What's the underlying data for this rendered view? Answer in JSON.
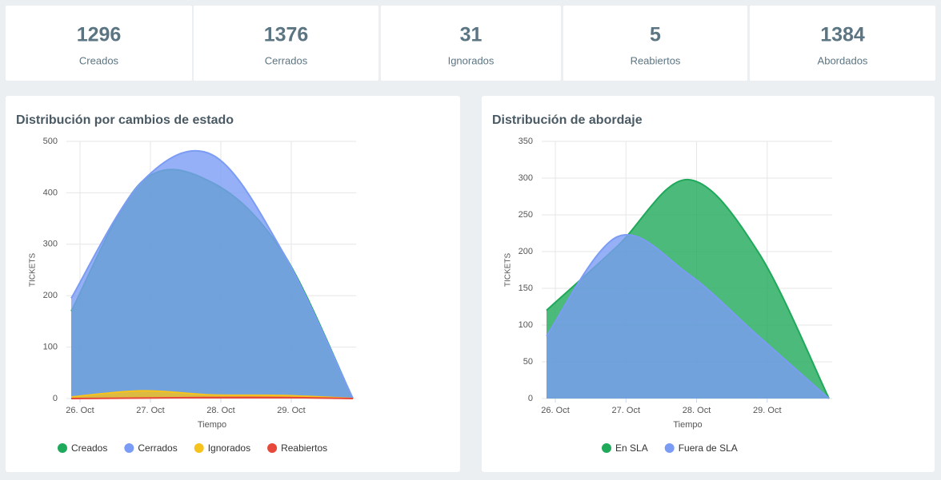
{
  "stats": [
    {
      "value": 1296,
      "label": "Creados"
    },
    {
      "value": 1376,
      "label": "Cerrados"
    },
    {
      "value": 31,
      "label": "Ignorados"
    },
    {
      "value": 5,
      "label": "Reabiertos"
    },
    {
      "value": 1384,
      "label": "Abordados"
    }
  ],
  "chart_data": [
    {
      "type": "area",
      "title": "Distribución por cambios de estado",
      "y_label": "TICKETS",
      "x_label": "Tiempo",
      "x": [
        25.875,
        26.875,
        27.875,
        28.875,
        29.875
      ],
      "xlim": [
        25.875,
        29.875
      ],
      "xticks": [
        {
          "value": 26,
          "label": "26. Oct"
        },
        {
          "value": 27,
          "label": "27. Oct"
        },
        {
          "value": 28,
          "label": "28. Oct"
        },
        {
          "value": 29,
          "label": "29. Oct"
        }
      ],
      "ylim": [
        0,
        500
      ],
      "yticks": [
        0,
        100,
        200,
        300,
        400,
        500
      ],
      "grid": true,
      "series": [
        {
          "name": "Creados",
          "color": "#1fa95a",
          "values": [
            170,
            421,
            420,
            285,
            0
          ]
        },
        {
          "name": "Cerrados",
          "color": "#7b9cf4",
          "values": [
            195,
            421,
            474,
            286,
            0
          ]
        },
        {
          "name": "Ignorados",
          "color": "#f6c21c",
          "values": [
            3,
            15,
            7,
            6,
            0
          ]
        },
        {
          "name": "Reabiertos",
          "color": "#e8483a",
          "values": [
            0,
            1,
            2,
            2,
            0
          ]
        }
      ]
    },
    {
      "type": "area",
      "title": "Distribución de abordaje",
      "y_label": "TICKETS",
      "x_label": "Tiempo",
      "x": [
        25.875,
        26.875,
        27.875,
        28.875,
        29.875
      ],
      "xlim": [
        25.875,
        29.875
      ],
      "xticks": [
        {
          "value": 26,
          "label": "26. Oct"
        },
        {
          "value": 27,
          "label": "27. Oct"
        },
        {
          "value": 28,
          "label": "28. Oct"
        },
        {
          "value": 29,
          "label": "29. Oct"
        }
      ],
      "ylim": [
        0,
        350
      ],
      "yticks": [
        0,
        50,
        100,
        150,
        200,
        250,
        300,
        350
      ],
      "grid": true,
      "series": [
        {
          "name": "En SLA",
          "color": "#1fa95a",
          "values": [
            120,
            207,
            298,
            199,
            0
          ]
        },
        {
          "name": "Fuera de SLA",
          "color": "#7b9cf4",
          "values": [
            85,
            220,
            170,
            85,
            0
          ]
        }
      ]
    }
  ]
}
